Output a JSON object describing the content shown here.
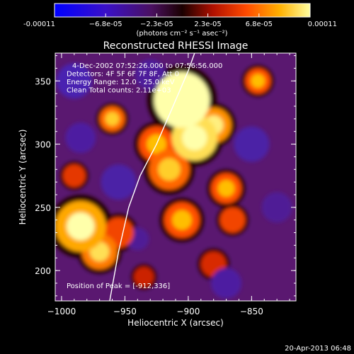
{
  "chart_data": {
    "type": "heatmap",
    "title": "Reconstructed RHESSI Image",
    "xlabel": "Heliocentric X (arcsec)",
    "ylabel": "Heliocentric Y (arcsec)",
    "xlim": [
      -1005,
      -815
    ],
    "ylim": [
      176,
      372
    ],
    "xticks": [
      -1000,
      -950,
      -900,
      -850
    ],
    "xtick_labels": [
      "−1000",
      "−950",
      "−900",
      "−850"
    ],
    "yticks": [
      200,
      250,
      300,
      350
    ],
    "ytick_labels": [
      "200",
      "250",
      "300",
      "350"
    ],
    "colorbar": {
      "min": -0.00011,
      "max": 0.00011,
      "tick_labels": [
        "-0.00011",
        "−6.8e-05",
        "−2.3e-05",
        "2.3e-05",
        "6.8e-05",
        "0.00011"
      ],
      "unit_label": "(photons cm⁻² s⁻¹ asec⁻²)"
    },
    "annotations": [
      "4-Dec-2002 07:52:26.000 to 07:56:56.000",
      "Detectors: 4F 5F 6F 7F 8F, Att 0",
      "Energy Range: 12.0 - 25.0 keV",
      "Clean     Total counts: 2.11e+03"
    ],
    "peak_label": "Position of Peak = [-912,336]",
    "peak": [
      -912,
      336
    ],
    "limb_curve": [
      [
        -962,
        176
      ],
      [
        -955,
        215
      ],
      [
        -947,
        250
      ],
      [
        -938,
        275
      ],
      [
        -925,
        300
      ],
      [
        -912,
        330
      ],
      [
        -900,
        358
      ],
      [
        -895,
        372
      ]
    ],
    "blobs": [
      {
        "x": -905,
        "y": 335,
        "r": 22,
        "v": 1.0
      },
      {
        "x": -895,
        "y": 305,
        "r": 18,
        "v": 0.9
      },
      {
        "x": -880,
        "y": 315,
        "r": 14,
        "v": 0.7
      },
      {
        "x": -915,
        "y": 280,
        "r": 16,
        "v": 0.6
      },
      {
        "x": -905,
        "y": 240,
        "r": 14,
        "v": 0.55
      },
      {
        "x": -925,
        "y": 300,
        "r": 14,
        "v": 0.55
      },
      {
        "x": -960,
        "y": 320,
        "r": 10,
        "v": 0.6
      },
      {
        "x": -985,
        "y": 235,
        "r": 20,
        "v": 0.75
      },
      {
        "x": -970,
        "y": 215,
        "r": 14,
        "v": 0.65
      },
      {
        "x": -955,
        "y": 230,
        "r": 12,
        "v": 0.5
      },
      {
        "x": -870,
        "y": 265,
        "r": 12,
        "v": 0.55
      },
      {
        "x": -865,
        "y": 240,
        "r": 10,
        "v": 0.5
      },
      {
        "x": -845,
        "y": 350,
        "r": 10,
        "v": 0.55
      },
      {
        "x": -990,
        "y": 275,
        "r": 9,
        "v": 0.45
      },
      {
        "x": -880,
        "y": 205,
        "r": 10,
        "v": 0.4
      },
      {
        "x": -935,
        "y": 195,
        "r": 8,
        "v": 0.35
      },
      {
        "x": -990,
        "y": 350,
        "r": 14,
        "v": -0.6
      },
      {
        "x": -955,
        "y": 270,
        "r": 14,
        "v": -0.5
      },
      {
        "x": -985,
        "y": 305,
        "r": 12,
        "v": -0.45
      },
      {
        "x": -850,
        "y": 300,
        "r": 14,
        "v": -0.5
      },
      {
        "x": -870,
        "y": 190,
        "r": 12,
        "v": -0.45
      },
      {
        "x": -930,
        "y": 355,
        "r": 12,
        "v": -0.4
      },
      {
        "x": -830,
        "y": 250,
        "r": 12,
        "v": -0.35
      },
      {
        "x": -940,
        "y": 225,
        "r": 9,
        "v": -0.35
      }
    ]
  },
  "footer": {
    "timestamp": "20-Apr-2013 06:48"
  }
}
